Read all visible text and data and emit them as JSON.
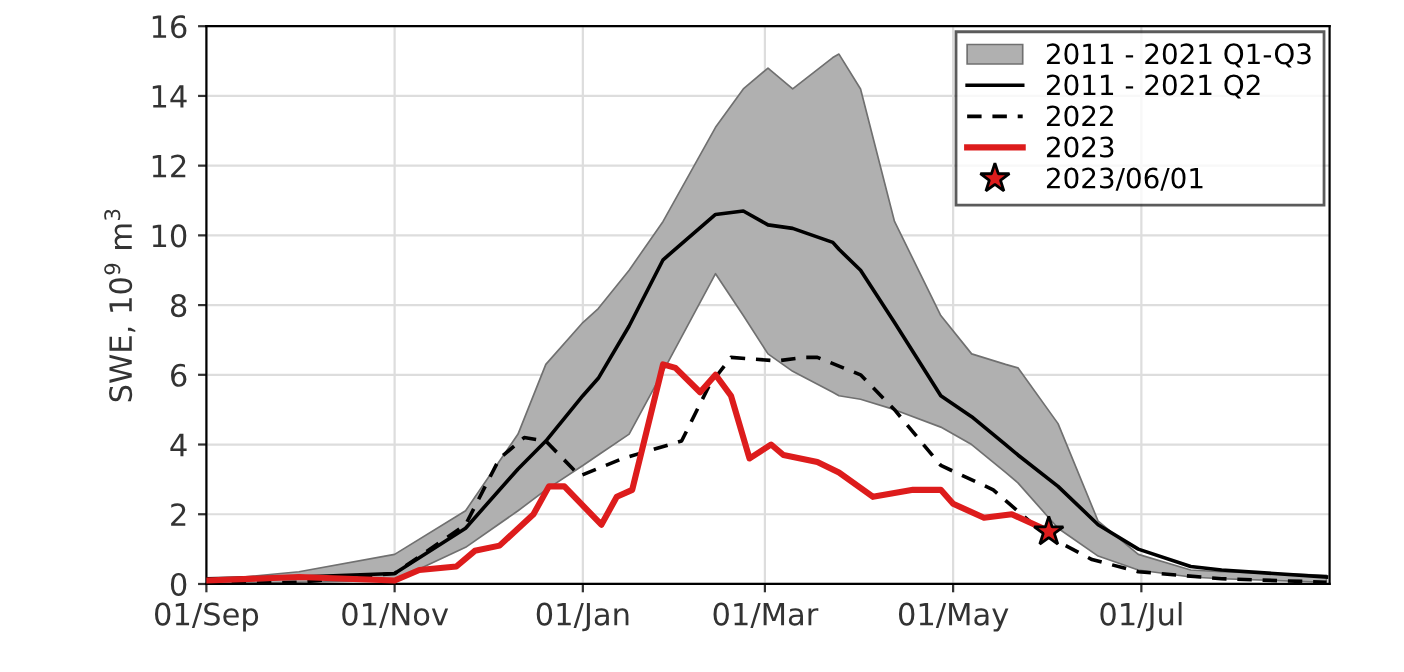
{
  "chart_data": {
    "type": "line",
    "ylabel": "SWE, 10$^{9}$ m$^{3}$",
    "xlim": [
      "2022-09-01",
      "2023-08-31"
    ],
    "xticks": [
      {
        "value": "2022-09-01",
        "label": "01/Sep"
      },
      {
        "value": "2022-11-01",
        "label": "01/Nov"
      },
      {
        "value": "2023-01-01",
        "label": "01/Jan"
      },
      {
        "value": "2023-03-01",
        "label": "01/Mar"
      },
      {
        "value": "2023-05-01",
        "label": "01/May"
      },
      {
        "value": "2023-07-01",
        "label": "01/Jul"
      }
    ],
    "ylim": [
      0,
      16
    ],
    "yticks": [
      0,
      2,
      4,
      6,
      8,
      10,
      12,
      14,
      16
    ],
    "grid": true,
    "legend": "top right",
    "annotations": [
      "2011 - 2021 Q1-Q3"
    ],
    "series": [
      {
        "name": "2011 - 2021 Q2",
        "color": "#000000",
        "line_style": "solid",
        "x": [
          "2022-09-01",
          "2022-10-01",
          "2022-11-01",
          "2022-11-24",
          "2022-12-11",
          "2022-12-20",
          "2023-01-01",
          "2023-01-06",
          "2023-01-16",
          "2023-01-27",
          "2023-02-13",
          "2023-02-22",
          "2023-03-02",
          "2023-03-10",
          "2023-03-23",
          "2023-03-25",
          "2023-04-01",
          "2023-04-12",
          "2023-04-27",
          "2023-05-07",
          "2023-05-18",
          "2023-05-22",
          "2023-06-04",
          "2023-06-17",
          "2023-06-30",
          "2023-07-17",
          "2023-07-27",
          "2023-08-30"
        ],
        "lower": [
          0.0,
          0.05,
          0.1,
          1.05,
          2.1,
          2.7,
          3.4,
          3.7,
          4.3,
          6.1,
          8.9,
          7.7,
          6.6,
          6.1,
          5.5,
          5.4,
          5.3,
          5.0,
          4.5,
          4.0,
          3.2,
          2.9,
          1.6,
          0.8,
          0.4,
          0.2,
          0.15,
          0.05
        ],
        "upper": [
          0.1,
          0.35,
          0.85,
          2.1,
          4.3,
          6.3,
          7.5,
          7.9,
          9.0,
          10.4,
          13.1,
          14.2,
          14.8,
          14.2,
          15.1,
          15.2,
          14.2,
          10.4,
          7.7,
          6.6,
          6.3,
          6.2,
          4.6,
          1.8,
          0.85,
          0.4,
          0.35,
          0.25
        ],
        "values": [
          0.15,
          0.2,
          0.3,
          1.6,
          3.3,
          4.1,
          5.4,
          5.9,
          7.4,
          9.3,
          10.6,
          10.7,
          10.3,
          10.2,
          9.8,
          9.6,
          9.0,
          7.5,
          5.4,
          4.8,
          4.0,
          3.7,
          2.8,
          1.7,
          1.0,
          0.5,
          0.4,
          0.2
        ]
      },
      {
        "name": "2022",
        "color": "#000000",
        "line_style": "dashed",
        "x": [
          "2022-09-01",
          "2022-10-01",
          "2022-11-01",
          "2022-11-24",
          "2022-12-05",
          "2022-12-13",
          "2022-12-20",
          "2022-12-31",
          "2023-01-14",
          "2023-02-02",
          "2023-02-11",
          "2023-02-18",
          "2023-03-05",
          "2023-03-14",
          "2023-03-18",
          "2023-04-01",
          "2023-04-12",
          "2023-04-27",
          "2023-05-14",
          "2023-05-31",
          "2023-06-15",
          "2023-06-30",
          "2023-07-27",
          "2023-08-30"
        ],
        "values": [
          0.0,
          0.05,
          0.3,
          1.7,
          3.6,
          4.2,
          4.1,
          3.1,
          3.6,
          4.1,
          5.7,
          6.5,
          6.4,
          6.5,
          6.5,
          6.0,
          5.0,
          3.4,
          2.7,
          1.4,
          0.7,
          0.35,
          0.15,
          0.05
        ]
      },
      {
        "name": "2023",
        "color": "#dd1c1c",
        "line_style": "solid",
        "x": [
          "2022-09-01",
          "2022-10-01",
          "2022-11-01",
          "2022-11-09",
          "2022-11-21",
          "2022-11-27",
          "2022-12-05",
          "2022-12-16",
          "2022-12-21",
          "2022-12-26",
          "2023-01-07",
          "2023-01-12",
          "2023-01-17",
          "2023-01-27",
          "2023-01-31",
          "2023-02-08",
          "2023-02-13",
          "2023-02-18",
          "2023-02-24",
          "2023-03-03",
          "2023-03-07",
          "2023-03-18",
          "2023-03-25",
          "2023-04-05",
          "2023-04-18",
          "2023-04-27",
          "2023-05-01",
          "2023-05-11",
          "2023-05-20",
          "2023-05-30",
          "2023-06-01"
        ],
        "values": [
          0.1,
          0.2,
          0.1,
          0.4,
          0.5,
          0.95,
          1.1,
          2.0,
          2.8,
          2.8,
          1.7,
          2.5,
          2.7,
          6.3,
          6.2,
          5.5,
          6.0,
          5.4,
          3.6,
          4.0,
          3.7,
          3.5,
          3.2,
          2.5,
          2.7,
          2.7,
          2.3,
          1.9,
          2.0,
          1.6,
          1.5
        ]
      },
      {
        "name": "2023/06/01",
        "type": "scatter",
        "color": "#dd1c1c",
        "marker": "star",
        "x": [
          "2023-06-01"
        ],
        "values": [
          1.5
        ]
      }
    ]
  }
}
